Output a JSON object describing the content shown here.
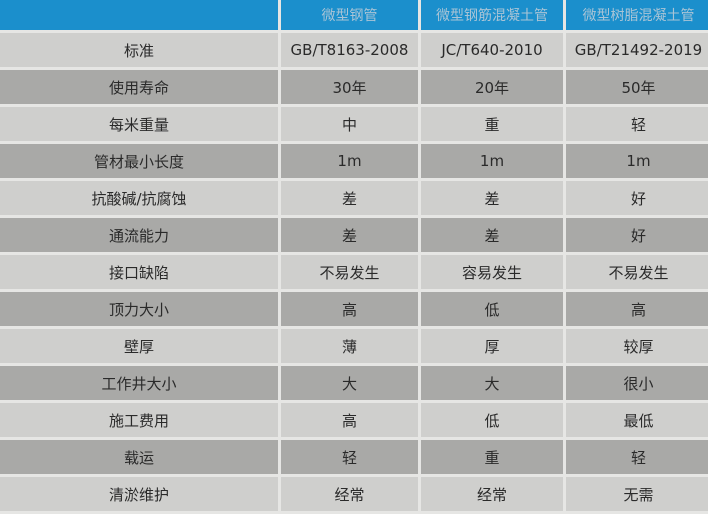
{
  "header": [
    "",
    "微型钢管",
    "微型钢筋混凝土管",
    "微型树脂混凝土管"
  ],
  "colors": {
    "header_bg": "#1b8fcc",
    "row_light": "#cfcfcd",
    "row_dark": "#a9a9a7"
  },
  "rows": [
    [
      "标准",
      "GB/T8163-2008",
      "JC/T640-2010",
      "GB/T21492-2019"
    ],
    [
      "使用寿命",
      "30年",
      "20年",
      "50年"
    ],
    [
      "每米重量",
      "中",
      "重",
      "轻"
    ],
    [
      "管材最小长度",
      "1m",
      "1m",
      "1m"
    ],
    [
      "抗酸碱/抗腐蚀",
      "差",
      "差",
      "好"
    ],
    [
      "通流能力",
      "差",
      "差",
      "好"
    ],
    [
      "接口缺陷",
      "不易发生",
      "容易发生",
      "不易发生"
    ],
    [
      "顶力大小",
      "高",
      "低",
      "高"
    ],
    [
      "壁厚",
      "薄",
      "厚",
      "较厚"
    ],
    [
      "工作井大小",
      "大",
      "大",
      "很小"
    ],
    [
      "施工费用",
      "高",
      "低",
      "最低"
    ],
    [
      "载运",
      "轻",
      "重",
      "轻"
    ],
    [
      "清淤维护",
      "经常",
      "经常",
      "无需"
    ]
  ]
}
